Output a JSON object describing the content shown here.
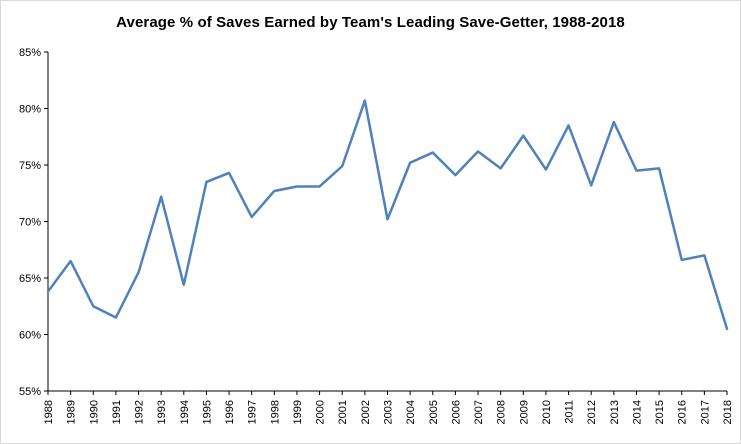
{
  "chart_data": {
    "type": "line",
    "title": "Average % of Saves Earned by Team's Leading Save-Getter, 1988-2018",
    "x": [
      1988,
      1989,
      1990,
      1991,
      1992,
      1993,
      1994,
      1995,
      1996,
      1997,
      1998,
      1999,
      2000,
      2001,
      2002,
      2003,
      2004,
      2005,
      2006,
      2007,
      2008,
      2009,
      2010,
      2011,
      2012,
      2013,
      2014,
      2015,
      2016,
      2017,
      2018
    ],
    "values": [
      63.8,
      66.5,
      62.5,
      61.5,
      65.5,
      72.2,
      64.4,
      73.5,
      74.3,
      70.4,
      72.7,
      73.1,
      73.1,
      74.9,
      80.7,
      70.2,
      75.2,
      76.1,
      74.1,
      76.2,
      74.7,
      77.6,
      74.6,
      78.5,
      73.2,
      78.8,
      74.5,
      74.7,
      66.6,
      67.0,
      60.5
    ],
    "ylim": [
      55,
      85
    ],
    "yticks": [
      55,
      60,
      65,
      70,
      75,
      80,
      85
    ],
    "ytick_suffix": "%",
    "line_color": "#4F81BD",
    "axis_color": "#000000",
    "grid": false,
    "legend": false
  }
}
